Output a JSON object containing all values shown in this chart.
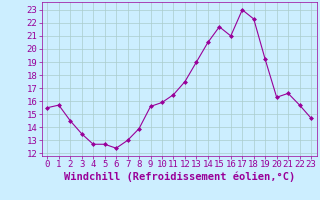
{
  "x": [
    0,
    1,
    2,
    3,
    4,
    5,
    6,
    7,
    8,
    9,
    10,
    11,
    12,
    13,
    14,
    15,
    16,
    17,
    18,
    19,
    20,
    21,
    22,
    23
  ],
  "y": [
    15.5,
    15.7,
    14.5,
    13.5,
    12.7,
    12.7,
    12.4,
    13.0,
    13.9,
    15.6,
    15.9,
    16.5,
    17.5,
    19.0,
    20.5,
    21.7,
    21.0,
    23.0,
    22.3,
    19.2,
    16.3,
    16.6,
    15.7,
    14.7
  ],
  "line_color": "#990099",
  "marker": "D",
  "marker_size": 2.0,
  "bg_color": "#cceeff",
  "grid_color": "#aacccc",
  "xlabel": "Windchill (Refroidissement éolien,°C)",
  "xlabel_fontsize": 7.5,
  "ylabel_ticks": [
    12,
    13,
    14,
    15,
    16,
    17,
    18,
    19,
    20,
    21,
    22,
    23
  ],
  "xlim": [
    -0.5,
    23.5
  ],
  "ylim": [
    11.8,
    23.6
  ],
  "xticks": [
    0,
    1,
    2,
    3,
    4,
    5,
    6,
    7,
    8,
    9,
    10,
    11,
    12,
    13,
    14,
    15,
    16,
    17,
    18,
    19,
    20,
    21,
    22,
    23
  ],
  "tick_fontsize": 6.5,
  "tick_color": "#990099",
  "axis_color": "#990099"
}
